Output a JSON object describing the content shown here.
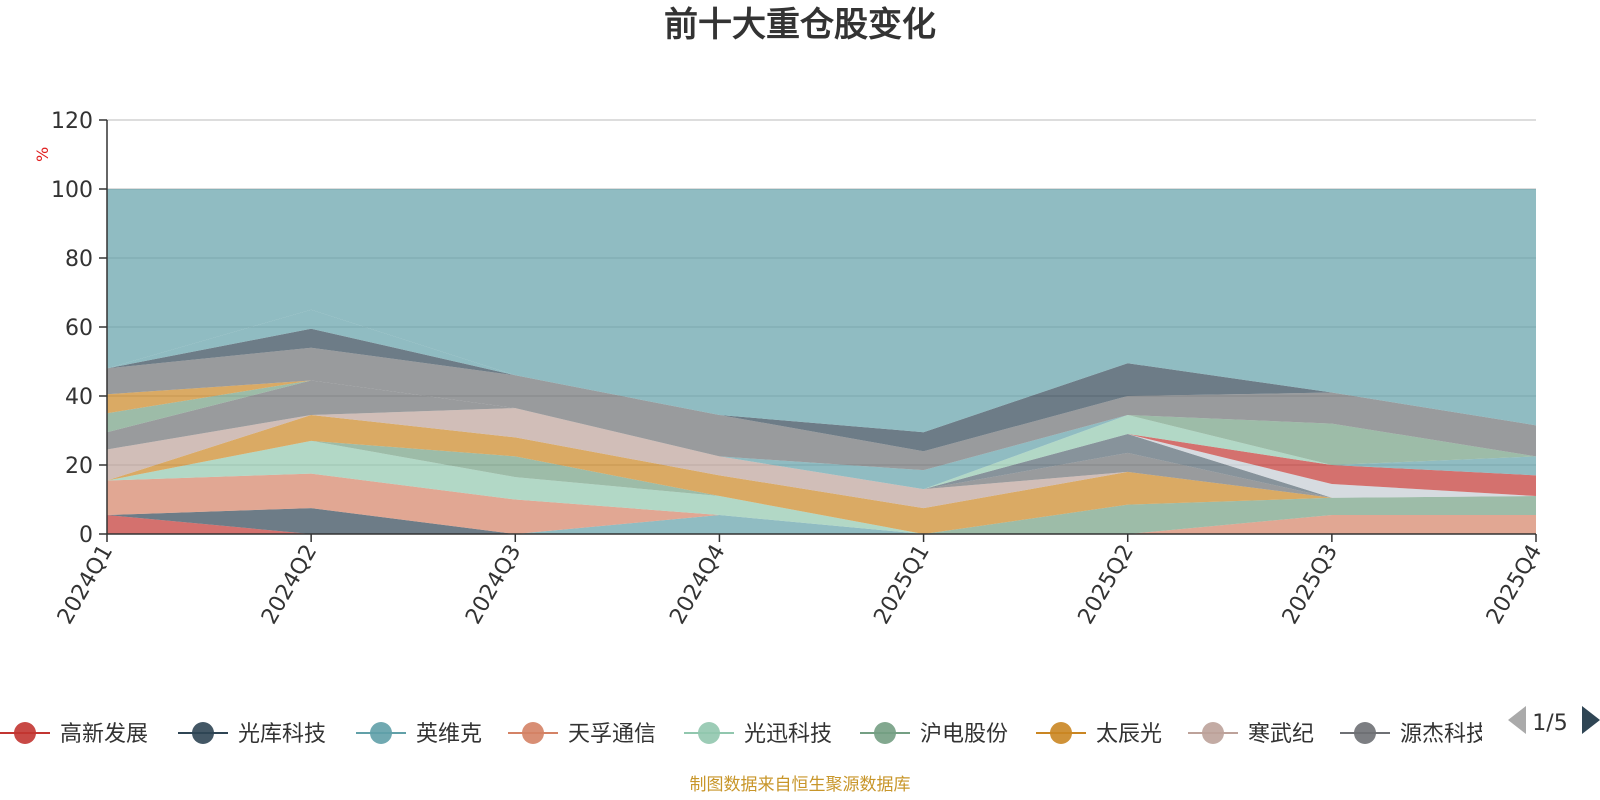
{
  "title": "前十大重仓股变化",
  "footer_text": "制图数据来自恒生聚源数据库",
  "pager": {
    "text": "1/5"
  },
  "colors": {
    "title": "#333333",
    "axis": "#333333",
    "ylabel": "#e01f1f",
    "grid": "#bbbbbb",
    "footer": "#c8962a",
    "pager_disabled": "#aaaaaa",
    "pager_active": "#2f4554"
  },
  "chart_data": {
    "type": "area",
    "stacked": true,
    "ylabel": "%",
    "ylim": [
      0,
      120
    ],
    "yticks": [
      "0",
      "20",
      "40",
      "60",
      "80",
      "100",
      "120"
    ],
    "grid": true,
    "legend_position": "bottom",
    "categories": [
      "2024Q1",
      "2024Q2",
      "2024Q3",
      "2024Q4",
      "2025Q1",
      "2025Q2",
      "2025Q3",
      "2025Q4"
    ],
    "series": [
      {
        "name": "高新发展",
        "color": "#c23531",
        "values": [
          5.5,
          0,
          0,
          0,
          0,
          0,
          0,
          0
        ]
      },
      {
        "name": "光库科技",
        "color": "#2f4554",
        "values": [
          0,
          7.5,
          0,
          0,
          0,
          0,
          0,
          0
        ]
      },
      {
        "name": "英维克",
        "color": "#61a0a8",
        "values": [
          0,
          0,
          0,
          5.5,
          0,
          0,
          0,
          0
        ]
      },
      {
        "name": "天孚通信",
        "color": "#d48265",
        "values": [
          10,
          10,
          10,
          0,
          0,
          0,
          5.5,
          5.5
        ]
      },
      {
        "name": "光迅科技",
        "color": "#91c7ae",
        "values": [
          0,
          9.5,
          6.5,
          5.5,
          0,
          0,
          0,
          0
        ]
      },
      {
        "name": "沪电股份",
        "color": "#749f83",
        "values": [
          0,
          0,
          6,
          0,
          0,
          8.5,
          5,
          5.5
        ]
      },
      {
        "name": "太辰光",
        "color": "#ca8622",
        "values": [
          0,
          7.5,
          5.5,
          6,
          7.5,
          9.5,
          0,
          0
        ]
      },
      {
        "name": "寒武纪",
        "color": "#bda29a",
        "values": [
          9,
          0,
          8.5,
          5.5,
          5.5,
          0,
          0,
          0
        ]
      },
      {
        "name": "源杰科技",
        "color": "#6e7074",
        "values": [
          5,
          10,
          0,
          0,
          0,
          5.5,
          0,
          0
        ]
      }
    ],
    "unlegended_bands": {
      "colors": [
        "#546570",
        "#c4ccd3",
        "#c23531",
        "#91c7ae",
        "#61a0a8",
        "#d48265",
        "#749f83",
        "#ca8622",
        "#bda29a",
        "#6e7074",
        "#2f4554",
        "#61a0a8"
      ],
      "values": [
        [
          0,
          0,
          0,
          0,
          0,
          5.5,
          0,
          0
        ],
        [
          0,
          0,
          0,
          0,
          0,
          0,
          4,
          0
        ],
        [
          0,
          0,
          0,
          0,
          0,
          0,
          5.5,
          6
        ],
        [
          0,
          0,
          0,
          0,
          0,
          5.5,
          0,
          0
        ],
        [
          0,
          0,
          0,
          0,
          5.5,
          0,
          0,
          5.5
        ],
        [
          0,
          0,
          0,
          0,
          0,
          0,
          0,
          0
        ],
        [
          5.5,
          0,
          0,
          0,
          0,
          0,
          12,
          0
        ],
        [
          5.5,
          0,
          0,
          0,
          0,
          0,
          0,
          0
        ],
        [
          0,
          0,
          0,
          0,
          0,
          0,
          0,
          0
        ],
        [
          7.5,
          9.5,
          9.5,
          12,
          5.5,
          5.5,
          9,
          9
        ],
        [
          0,
          5.5,
          0,
          0,
          5.5,
          9.5,
          0,
          0
        ],
        [
          0,
          5.5,
          0,
          0,
          0,
          0,
          0,
          0
        ]
      ]
    },
    "total": 100
  }
}
